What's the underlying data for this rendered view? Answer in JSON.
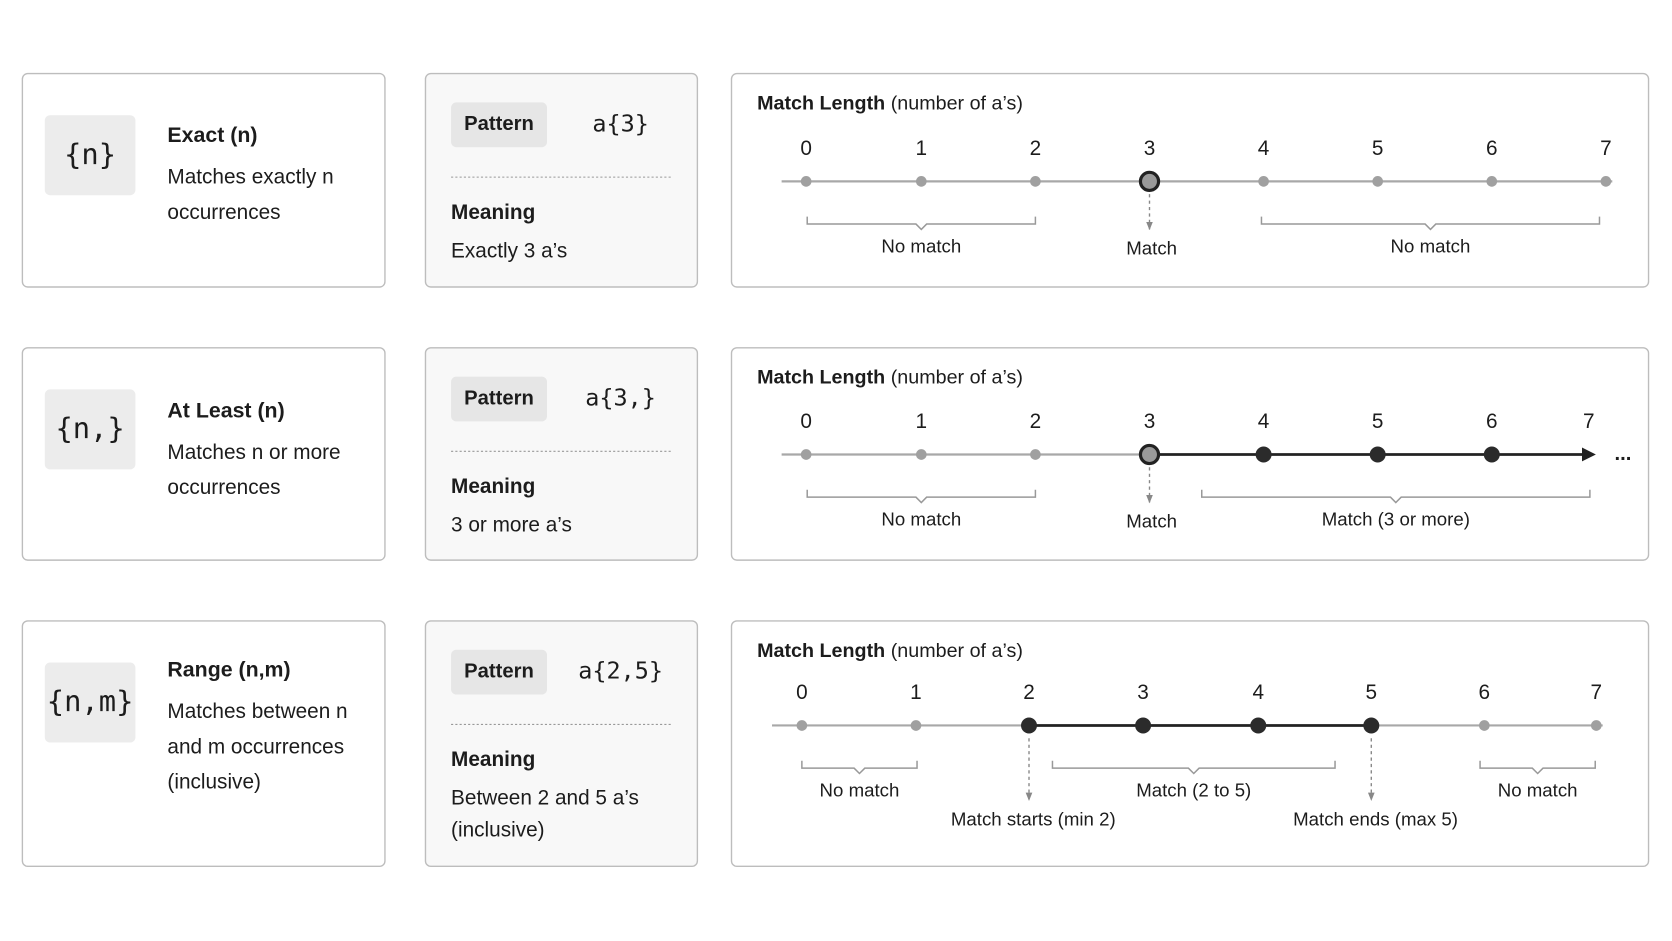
{
  "rows": [
    {
      "symbol": "{n}",
      "title": "Exact (n)",
      "description": [
        "Matches exactly n",
        "occurrences"
      ],
      "pattern_label": "Pattern",
      "pattern": "a{3}",
      "meaning_label": "Meaning",
      "meaning": [
        "Exactly 3 a’s"
      ],
      "chart": {
        "title": "Match Length",
        "subtitle": "(number of a’s)",
        "ticks": [
          0,
          1,
          2,
          3,
          4,
          5,
          6,
          7
        ],
        "annotations": [
          "No match",
          "Match",
          "No match"
        ]
      }
    },
    {
      "symbol": "{n,}",
      "title": "At Least (n)",
      "description": [
        "Matches n or more",
        "occurrences"
      ],
      "pattern_label": "Pattern",
      "pattern": "a{3,}",
      "meaning_label": "Meaning",
      "meaning": [
        "3 or more a’s"
      ],
      "chart": {
        "title": "Match Length",
        "subtitle": "(number of a’s)",
        "ticks": [
          0,
          1,
          2,
          3,
          4,
          5,
          6,
          7
        ],
        "more": "...",
        "annotations": [
          "No match",
          "Match",
          "Match (3 or more)"
        ]
      }
    },
    {
      "symbol": "{n,m}",
      "title": "Range (n,m)",
      "description": [
        "Matches between n",
        "and m occurrences",
        "(inclusive)"
      ],
      "pattern_label": "Pattern",
      "pattern": "a{2,5}",
      "meaning_label": "Meaning",
      "meaning": [
        "Between 2 and 5 a’s",
        "(inclusive)"
      ],
      "chart": {
        "title": "Match Length",
        "subtitle": "(number of a’s)",
        "ticks": [
          0,
          1,
          2,
          3,
          4,
          5,
          6,
          7
        ],
        "annotations": [
          "No match",
          "Match (2 to 5)",
          "No match",
          "Match starts (min 2)",
          "Match ends (max 5)"
        ]
      }
    }
  ]
}
